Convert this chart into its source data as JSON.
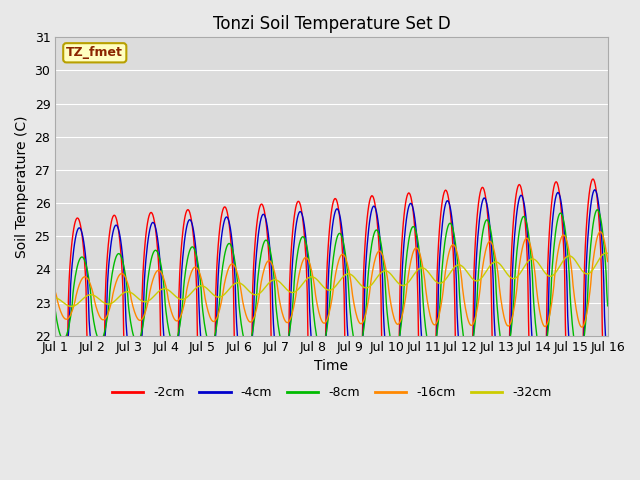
{
  "title": "Tonzi Soil Temperature Set D",
  "xlabel": "Time",
  "ylabel": "Soil Temperature (C)",
  "xlim": [
    0,
    15
  ],
  "ylim": [
    22.0,
    31.0
  ],
  "yticks": [
    22.0,
    23.0,
    24.0,
    25.0,
    26.0,
    27.0,
    28.0,
    29.0,
    30.0,
    31.0
  ],
  "xtick_labels": [
    "Jul 1",
    "Jul 2",
    "Jul 3",
    "Jul 4",
    "Jul 5",
    "Jul 6",
    "Jul 7",
    "Jul 8",
    "Jul 9",
    "Jul 10",
    "Jul 11",
    "Jul 12",
    "Jul 13",
    "Jul 14",
    "Jul 15",
    "Jul 16"
  ],
  "series_colors": [
    "#ff0000",
    "#0000cc",
    "#00bb00",
    "#ff8800",
    "#cccc00"
  ],
  "series_labels": [
    "-2cm",
    "-4cm",
    "-8cm",
    "-16cm",
    "-32cm"
  ],
  "legend_label": "TZ_fmet",
  "fig_bg": "#e8e8e8",
  "plot_bg": "#dcdcdc",
  "grid_color": "#ffffff",
  "title_fontsize": 12,
  "axis_fontsize": 10,
  "tick_fontsize": 9
}
